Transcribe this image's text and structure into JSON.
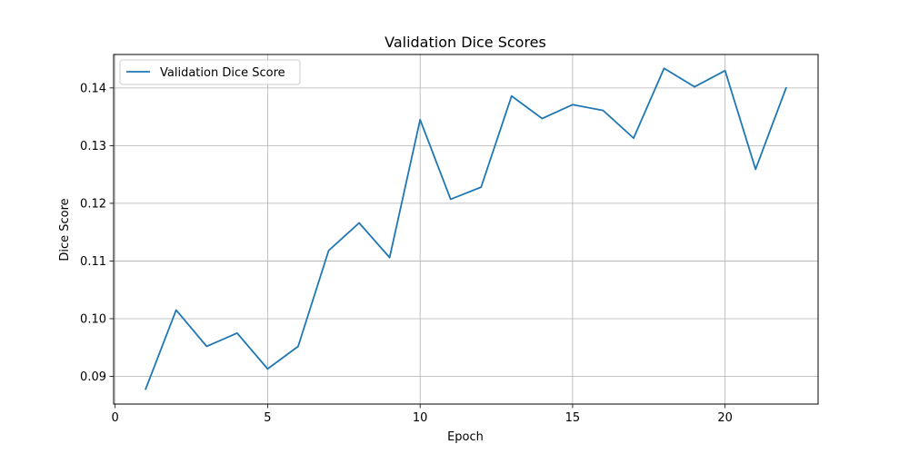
{
  "chart_data": {
    "type": "line",
    "title": "Validation Dice Scores",
    "xlabel": "Epoch",
    "ylabel": "Dice Score",
    "xlim": [
      -0.05,
      23.05
    ],
    "ylim": [
      0.0852,
      0.1458
    ],
    "xticks": [
      0,
      5,
      10,
      15,
      20
    ],
    "xtick_labels": [
      "0",
      "5",
      "10",
      "15",
      "20"
    ],
    "yticks": [
      0.09,
      0.1,
      0.11,
      0.12,
      0.13,
      0.14
    ],
    "ytick_labels": [
      "0.09",
      "0.10",
      "0.11",
      "0.12",
      "0.13",
      "0.14"
    ],
    "grid": true,
    "legend": {
      "position": "top-left"
    },
    "series": [
      {
        "name": "Validation Dice Score",
        "color": "#1f77b4",
        "x": [
          1,
          2,
          3,
          4,
          5,
          6,
          7,
          8,
          9,
          10,
          11,
          12,
          13,
          14,
          15,
          16,
          17,
          18,
          19,
          20,
          21,
          22
        ],
        "y": [
          0.0878,
          0.1015,
          0.0952,
          0.0975,
          0.0913,
          0.0952,
          0.1118,
          0.1166,
          0.1106,
          0.1345,
          0.1207,
          0.1228,
          0.1386,
          0.1347,
          0.1371,
          0.1361,
          0.1313,
          0.1434,
          0.1402,
          0.143,
          0.1259,
          0.14
        ]
      }
    ]
  }
}
